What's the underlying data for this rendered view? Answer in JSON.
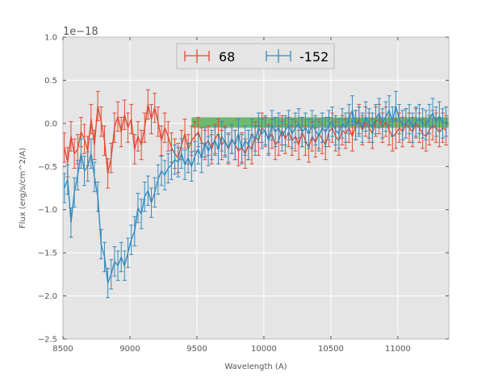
{
  "chart_data": {
    "type": "line",
    "xlabel": "Wavelength (A)",
    "ylabel": "Flux (erg/s/cm^2/A)",
    "y_offset_label": "1e−18",
    "xlim": [
      8500,
      11380
    ],
    "ylim": [
      -2.5,
      1.0
    ],
    "y_scale_factor": 1e-18,
    "x_ticks": [
      8500,
      9000,
      9500,
      10000,
      10500,
      11000
    ],
    "x_tick_labels": [
      "8500",
      "9000",
      "9500",
      "10000",
      "10500",
      "11000"
    ],
    "y_ticks": [
      -2.5,
      -2.0,
      -1.5,
      -1.0,
      -0.5,
      0.0,
      0.5,
      1.0
    ],
    "y_tick_labels": [
      "−2.5",
      "−2.0",
      "−1.5",
      "−1.0",
      "−0.5",
      "0.0",
      "0.5",
      "1.0"
    ],
    "grid": true,
    "legend_placement": "top-center",
    "background_color": "#e5e5e5",
    "series": [
      {
        "name": "68",
        "color": "#e24a33",
        "error_style": "errorbar",
        "x": [
          8510,
          8535,
          8560,
          8585,
          8610,
          8635,
          8660,
          8685,
          8710,
          8735,
          8760,
          8785,
          8810,
          8835,
          8860,
          8885,
          8910,
          8935,
          8960,
          8985,
          9010,
          9035,
          9060,
          9085,
          9110,
          9135,
          9160,
          9185,
          9210,
          9235,
          9260,
          9285,
          9310,
          9335,
          9360,
          9385,
          9410,
          9435,
          9460,
          9485,
          9510,
          9535,
          9560,
          9585,
          9610,
          9635,
          9660,
          9685,
          9710,
          9735,
          9760,
          9785,
          9810,
          9835,
          9860,
          9885,
          9910,
          9935,
          9960,
          9985,
          10010,
          10035,
          10060,
          10085,
          10110,
          10135,
          10160,
          10185,
          10210,
          10235,
          10260,
          10285,
          10310,
          10335,
          10360,
          10385,
          10410,
          10435,
          10460,
          10485,
          10510,
          10535,
          10560,
          10585,
          10610,
          10635,
          10660,
          10685,
          10710,
          10735,
          10760,
          10785,
          10810,
          10835,
          10860,
          10885,
          10910,
          10935,
          10960,
          10985,
          11010,
          11035,
          11060,
          11085,
          11110,
          11135,
          11160,
          11185,
          11210,
          11235,
          11260,
          11285,
          11310,
          11335,
          11360
        ],
        "y": [
          -0.28,
          -0.45,
          -0.15,
          -0.35,
          -0.3,
          -0.1,
          -0.18,
          -0.32,
          0.05,
          -0.25,
          0.2,
          0.02,
          -0.2,
          -0.58,
          -0.4,
          -0.05,
          0.08,
          -0.1,
          0.1,
          -0.05,
          0.05,
          -0.3,
          -0.15,
          -0.25,
          -0.05,
          0.22,
          0.05,
          0.18,
          0.02,
          -0.2,
          -0.05,
          -0.15,
          -0.28,
          -0.35,
          -0.4,
          -0.25,
          -0.12,
          -0.3,
          -0.2,
          -0.15,
          -0.1,
          -0.22,
          -0.25,
          -0.2,
          -0.3,
          -0.18,
          -0.12,
          -0.25,
          -0.2,
          -0.3,
          -0.18,
          -0.25,
          -0.32,
          -0.28,
          -0.35,
          -0.25,
          -0.3,
          -0.15,
          -0.2,
          -0.05,
          -0.1,
          -0.18,
          -0.12,
          -0.25,
          -0.2,
          -0.08,
          -0.18,
          -0.1,
          -0.2,
          -0.15,
          -0.25,
          -0.1,
          -0.2,
          -0.28,
          -0.15,
          -0.22,
          -0.12,
          -0.18,
          -0.25,
          -0.1,
          -0.05,
          -0.15,
          -0.2,
          -0.08,
          -0.12,
          -0.05,
          -0.15,
          -0.02,
          0.05,
          -0.08,
          0.02,
          -0.05,
          -0.12,
          0.02,
          0.05,
          -0.05,
          0.02,
          -0.08,
          -0.15,
          -0.12,
          -0.05,
          -0.1,
          0.0,
          -0.05,
          -0.1,
          0.0,
          -0.05,
          -0.12,
          -0.15,
          -0.08,
          -0.02,
          -0.05,
          -0.1,
          -0.05,
          -0.08
        ],
        "yerr": 0.17
      },
      {
        "name": "-152",
        "color": "#348abd",
        "error_style": "errorbar",
        "x": [
          8510,
          8535,
          8560,
          8585,
          8610,
          8635,
          8660,
          8685,
          8710,
          8735,
          8760,
          8785,
          8810,
          8835,
          8860,
          8885,
          8910,
          8935,
          8960,
          8985,
          9010,
          9035,
          9060,
          9085,
          9110,
          9135,
          9160,
          9185,
          9210,
          9235,
          9260,
          9285,
          9310,
          9335,
          9360,
          9385,
          9410,
          9435,
          9460,
          9485,
          9510,
          9535,
          9560,
          9585,
          9610,
          9635,
          9660,
          9685,
          9710,
          9735,
          9760,
          9785,
          9810,
          9835,
          9860,
          9885,
          9910,
          9935,
          9960,
          9985,
          10010,
          10035,
          10060,
          10085,
          10110,
          10135,
          10160,
          10185,
          10210,
          10235,
          10260,
          10285,
          10310,
          10335,
          10360,
          10385,
          10410,
          10435,
          10460,
          10485,
          10510,
          10535,
          10560,
          10585,
          10610,
          10635,
          10660,
          10685,
          10710,
          10735,
          10760,
          10785,
          10810,
          10835,
          10860,
          10885,
          10910,
          10935,
          10960,
          10985,
          11010,
          11035,
          11060,
          11085,
          11110,
          11135,
          11160,
          11185,
          11210,
          11235,
          11260,
          11285,
          11310,
          11335,
          11360
        ],
        "y": [
          -0.75,
          -0.65,
          -1.15,
          -0.8,
          -0.6,
          -0.35,
          -0.55,
          -0.5,
          -0.35,
          -0.62,
          -0.85,
          -1.4,
          -1.55,
          -1.85,
          -1.75,
          -1.6,
          -1.65,
          -1.55,
          -1.65,
          -1.5,
          -1.35,
          -1.25,
          -0.98,
          -1.05,
          -0.85,
          -0.78,
          -0.92,
          -0.8,
          -0.65,
          -0.55,
          -0.6,
          -0.52,
          -0.48,
          -0.42,
          -0.45,
          -0.35,
          -0.48,
          -0.4,
          -0.5,
          -0.38,
          -0.3,
          -0.4,
          -0.22,
          -0.32,
          -0.25,
          -0.2,
          -0.3,
          -0.15,
          -0.22,
          -0.28,
          -0.18,
          -0.25,
          -0.12,
          -0.3,
          -0.2,
          -0.25,
          -0.12,
          -0.2,
          -0.05,
          -0.12,
          -0.08,
          -0.2,
          -0.02,
          -0.1,
          -0.05,
          -0.15,
          -0.08,
          -0.02,
          -0.12,
          -0.05,
          0.0,
          -0.1,
          -0.05,
          -0.12,
          -0.02,
          -0.08,
          -0.15,
          -0.05,
          -0.1,
          -0.02,
          0.02,
          -0.08,
          -0.12,
          0.0,
          -0.05,
          0.05,
          0.15,
          -0.02,
          0.02,
          -0.05,
          0.08,
          0.0,
          -0.05,
          0.05,
          0.12,
          0.0,
          0.08,
          0.15,
          0.02,
          0.2,
          0.05,
          -0.02,
          0.0,
          0.05,
          -0.05,
          0.02,
          0.05,
          0.0,
          -0.02,
          0.05,
          0.12,
          0.02,
          0.08,
          0.0,
          0.02
        ],
        "yerr": 0.17
      }
    ],
    "bands": [
      {
        "x_start": 9460,
        "x_end": 11380,
        "y_low": -0.05,
        "y_high": 0.07,
        "color": "#2ca02c",
        "opacity": 0.65
      }
    ]
  }
}
